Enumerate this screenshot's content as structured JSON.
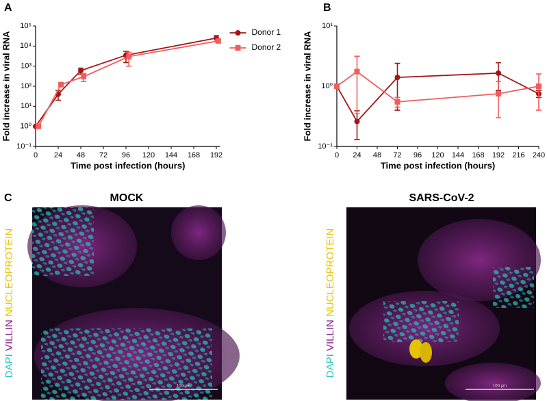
{
  "chart_data": [
    {
      "type": "line",
      "panel_label": "A",
      "xlabel": "Time post infection (hours)",
      "ylabel": "Fold increase in viral RNA",
      "xlim": [
        0,
        196
      ],
      "xticks": [
        0,
        24,
        48,
        72,
        96,
        120,
        144,
        168,
        192
      ],
      "ylim": [
        0.1,
        100000
      ],
      "log_y": true,
      "yticks": [
        {
          "value": 0.1,
          "label": "10⁻¹"
        },
        {
          "value": 1,
          "label": "10⁰"
        },
        {
          "value": 10,
          "label": "10¹"
        },
        {
          "value": 100,
          "label": "10²"
        },
        {
          "value": 1000,
          "label": "10³"
        },
        {
          "value": 10000,
          "label": "10⁴"
        },
        {
          "value": 100000,
          "label": "10⁵"
        }
      ],
      "legend": "top-right",
      "series": [
        {
          "name": "Donor 1",
          "color": "#a31515",
          "marker": "circle",
          "x": [
            0,
            24,
            48,
            96,
            192
          ],
          "values": [
            1,
            40,
            600,
            3500,
            25000
          ],
          "errors": [
            0,
            20,
            200,
            2000,
            8000
          ]
        },
        {
          "name": "Donor 2",
          "color": "#f25c5c",
          "marker": "square",
          "x": [
            3,
            27,
            51,
            99,
            194
          ],
          "values": [
            1,
            120,
            300,
            3000,
            18000
          ],
          "errors": [
            0,
            20,
            130,
            2000,
            3000
          ]
        }
      ]
    },
    {
      "type": "line",
      "panel_label": "B",
      "xlabel": "Time post infection (hours)",
      "ylabel": "Fold increase in viral RNA",
      "xlim": [
        0,
        240
      ],
      "xticks": [
        0,
        24,
        48,
        72,
        96,
        120,
        144,
        168,
        192,
        216,
        240
      ],
      "ylim": [
        0.1,
        10
      ],
      "log_y": true,
      "yticks": [
        {
          "value": 0.1,
          "label": "10⁻¹"
        },
        {
          "value": 1,
          "label": "10⁰"
        },
        {
          "value": 10,
          "label": "10¹"
        }
      ],
      "series": [
        {
          "color": "#a31515",
          "marker": "circle",
          "x": [
            0,
            24,
            72,
            192,
            240
          ],
          "values": [
            1,
            0.26,
            1.4,
            1.65,
            0.75
          ],
          "errors": [
            0,
            0.13,
            1.0,
            0.8,
            0.1
          ]
        },
        {
          "color": "#f25c5c",
          "marker": "square",
          "x": [
            0,
            24,
            72,
            192,
            240
          ],
          "values": [
            1,
            1.75,
            0.55,
            0.75,
            1.0
          ],
          "errors": [
            0,
            1.4,
            0.1,
            0.45,
            0.6
          ]
        }
      ]
    }
  ],
  "panel_label": "C",
  "images": [
    {
      "title": "MOCK",
      "stains": [
        "DAPI",
        "VILLIN",
        "NUCLEOPROTEIN"
      ],
      "scale_bar": "100 µm"
    },
    {
      "title": "SARS-CoV-2",
      "stains": [
        "DAPI",
        "VILLIN",
        "NUCLEOPROTEIN"
      ],
      "scale_bar": "100 µm"
    }
  ]
}
